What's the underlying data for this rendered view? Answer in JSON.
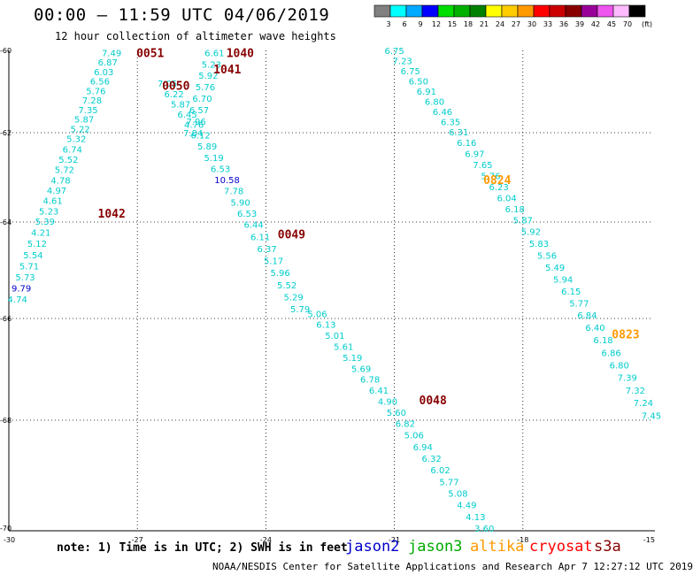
{
  "title": "00:00 – 11:59 UTC 04/06/2019",
  "subtitle": "12 hour collection of altimeter wave heights",
  "colorbar": {
    "unit": "(ft)",
    "bins": [
      {
        "label": "3",
        "color": "#808080"
      },
      {
        "label": "6",
        "color": "#00ffff"
      },
      {
        "label": "9",
        "color": "#00aaff"
      },
      {
        "label": "12",
        "color": "#0000ff"
      },
      {
        "label": "15",
        "color": "#00dd00"
      },
      {
        "label": "18",
        "color": "#00b000"
      },
      {
        "label": "21",
        "color": "#008000"
      },
      {
        "label": "24",
        "color": "#ffff00"
      },
      {
        "label": "27",
        "color": "#ffcc00"
      },
      {
        "label": "30",
        "color": "#ff9900"
      },
      {
        "label": "33",
        "color": "#ff0000"
      },
      {
        "label": "36",
        "color": "#cc0000"
      },
      {
        "label": "39",
        "color": "#880000"
      },
      {
        "label": "42",
        "color": "#990099"
      },
      {
        "label": "45",
        "color": "#ee55ee"
      },
      {
        "label": "70",
        "color": "#ffbbff"
      },
      {
        "label": "",
        "color": "#000000"
      }
    ]
  },
  "axes": {
    "lat_ticks": [
      "-60",
      "-62",
      "-64",
      "-66",
      "-68",
      "-70"
    ],
    "lon_ticks": [
      "-30",
      "-27",
      "-24",
      "-21",
      "-18",
      "-15"
    ]
  },
  "pass_labels": [
    {
      "text": "0051",
      "lon": -26.7,
      "lat": -60.05,
      "color": "#880000"
    },
    {
      "text": "1040",
      "lon": -24.6,
      "lat": -60.05,
      "color": "#880000"
    },
    {
      "text": "1041",
      "lon": -24.9,
      "lat": -60.45,
      "color": "#880000"
    },
    {
      "text": "0050",
      "lon": -26.1,
      "lat": -60.85,
      "color": "#880000"
    },
    {
      "text": "1042",
      "lon": -27.6,
      "lat": -63.8,
      "color": "#880000"
    },
    {
      "text": "0049",
      "lon": -23.4,
      "lat": -64.25,
      "color": "#880000"
    },
    {
      "text": "0824",
      "lon": -18.6,
      "lat": -63.05,
      "color": "#ff9900"
    },
    {
      "text": "0823",
      "lon": -15.6,
      "lat": -66.3,
      "color": "#ff9900"
    },
    {
      "text": "0048",
      "lon": -20.1,
      "lat": -67.6,
      "color": "#880000"
    }
  ],
  "tracks": [
    {
      "name": "track-1042",
      "start": [
        -29.8,
        -65.6
      ],
      "end": [
        -27.6,
        -60.05
      ],
      "color": "#00cccc",
      "values": [
        "4.74",
        "9.79",
        "5.73",
        "5.71",
        "5.54",
        "5.12",
        "4.21",
        "5.39",
        "5.23",
        "4.61",
        "4.97",
        "4.78",
        "5.72",
        "5.52",
        "6.74",
        "5.32",
        "5.22",
        "5.87",
        "7.35",
        "7.28",
        "5.76",
        "6.56",
        "6.03",
        "6.87",
        "7.49"
      ],
      "colors": {
        "1": "#0000cc"
      }
    },
    {
      "name": "track-1041",
      "start": [
        -25.7,
        -62.0
      ],
      "end": [
        -25.2,
        -60.05
      ],
      "color": "#00cccc",
      "values": [
        "7.84",
        "7.96",
        "6.57",
        "6.70",
        "5.76",
        "5.92",
        "5.23",
        "6.61"
      ]
    },
    {
      "name": "track-0050",
      "start": [
        -26.3,
        -60.8
      ],
      "end": [
        -23.2,
        -65.8
      ],
      "color": "#00cccc",
      "values": [
        "7.05",
        "6.22",
        "5.87",
        "6.45",
        "4.76",
        "6.12",
        "5.89",
        "5.19",
        "6.53",
        "10.58",
        "7.78",
        "5.90",
        "6.53",
        "6.44",
        "6.11",
        "6.37",
        "5.17",
        "5.96",
        "5.52",
        "5.29",
        "5.79"
      ],
      "colors": {
        "9": "#0000cc"
      }
    },
    {
      "name": "track-0049",
      "start": [
        -22.8,
        -65.9
      ],
      "end": [
        -18.9,
        -70.0
      ],
      "color": "#00cccc",
      "values": [
        "5.06",
        "6.13",
        "5.01",
        "5.61",
        "5.19",
        "5.69",
        "6.78",
        "6.41",
        "4.90",
        "5.60",
        "6.82",
        "5.06",
        "6.94",
        "6.32",
        "6.02",
        "5.77",
        "5.08",
        "4.49",
        "4.13",
        "3.60"
      ]
    },
    {
      "name": "track-0824",
      "start": [
        -21.0,
        -60.0
      ],
      "end": [
        -15.0,
        -67.9
      ],
      "color": "#00cccc",
      "values": [
        "6.75",
        "7.23",
        "6.75",
        "6.50",
        "6.91",
        "6.80",
        "6.46",
        "6.35",
        "6.31",
        "6.16",
        "6.97",
        "7.65",
        "5.76",
        "6.23",
        "6.04",
        "6.18",
        "5.87",
        "5.92",
        "5.83",
        "5.56",
        "5.49",
        "5.94",
        "6.15",
        "5.77",
        "6.84",
        "6.40",
        "6.18",
        "6.86",
        "6.80",
        "7.39",
        "7.32",
        "7.24",
        "7.45"
      ]
    }
  ],
  "note": "note: 1) Time is in UTC; 2) SWH is in feet",
  "satellites": [
    {
      "name": "jason2",
      "color": "#0000cc"
    },
    {
      "name": "jason3",
      "color": "#00aa00"
    },
    {
      "name": "altika",
      "color": "#ff9900"
    },
    {
      "name": "cryosat",
      "color": "#ff0000"
    },
    {
      "name": "s3a",
      "color": "#880000"
    }
  ],
  "credit": "NOAA/NESDIS Center for Satellite Applications and Research   Apr  7 12:27:12 UTC 2019"
}
